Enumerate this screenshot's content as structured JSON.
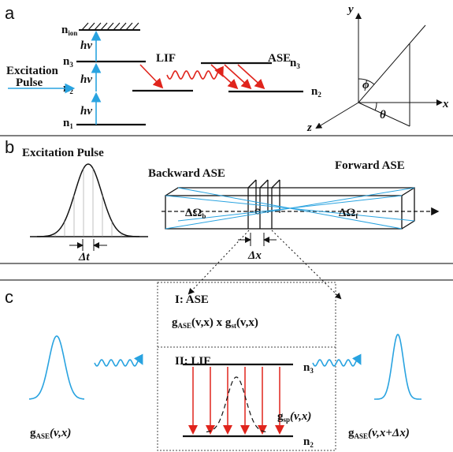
{
  "panel_a": {
    "label": "a",
    "ion": {
      "main": "n",
      "sub": "ion"
    },
    "n3": {
      "main": "n",
      "sub": "3"
    },
    "n2": {
      "main": "n",
      "sub": "2"
    },
    "n1": {
      "main": "n",
      "sub": "1"
    },
    "photon": [
      "hv",
      "hv",
      "hv"
    ],
    "excitation": [
      "Excitation",
      "Pulse"
    ],
    "lif": "LIF",
    "ase": "ASE",
    "ase_n3": {
      "main": "n",
      "sub": "3"
    },
    "ase_n2": {
      "main": "n",
      "sub": "2"
    },
    "axes": {
      "x": "x",
      "y": "y",
      "z": "z",
      "phi": "ϕ",
      "theta": "θ"
    }
  },
  "panel_b": {
    "label": "b",
    "excitation": "Excitation Pulse",
    "backward": "Backward ASE",
    "forward": "Forward ASE",
    "omega_b": {
      "main": "ΔΩ",
      "sub": "b"
    },
    "omega_f": {
      "main": "ΔΩ",
      "sub": "f"
    },
    "dt": "Δt",
    "dx": "Δx"
  },
  "panel_c": {
    "label": "c",
    "box1_title": "I: ASE",
    "box1_formula": [
      "g",
      "ASE",
      "(v,x) x g",
      "st",
      "(v,x)"
    ],
    "box2_title": "II: LIF",
    "n3": {
      "main": "n",
      "sub": "3"
    },
    "n2": {
      "main": "n",
      "sub": "2"
    },
    "gsp": [
      "g",
      "sp",
      "(v,x)"
    ],
    "g_left": [
      "g",
      "ASE",
      "(v,x)"
    ],
    "g_right": [
      "g",
      "ASE",
      "(v,x+Δx)"
    ]
  }
}
